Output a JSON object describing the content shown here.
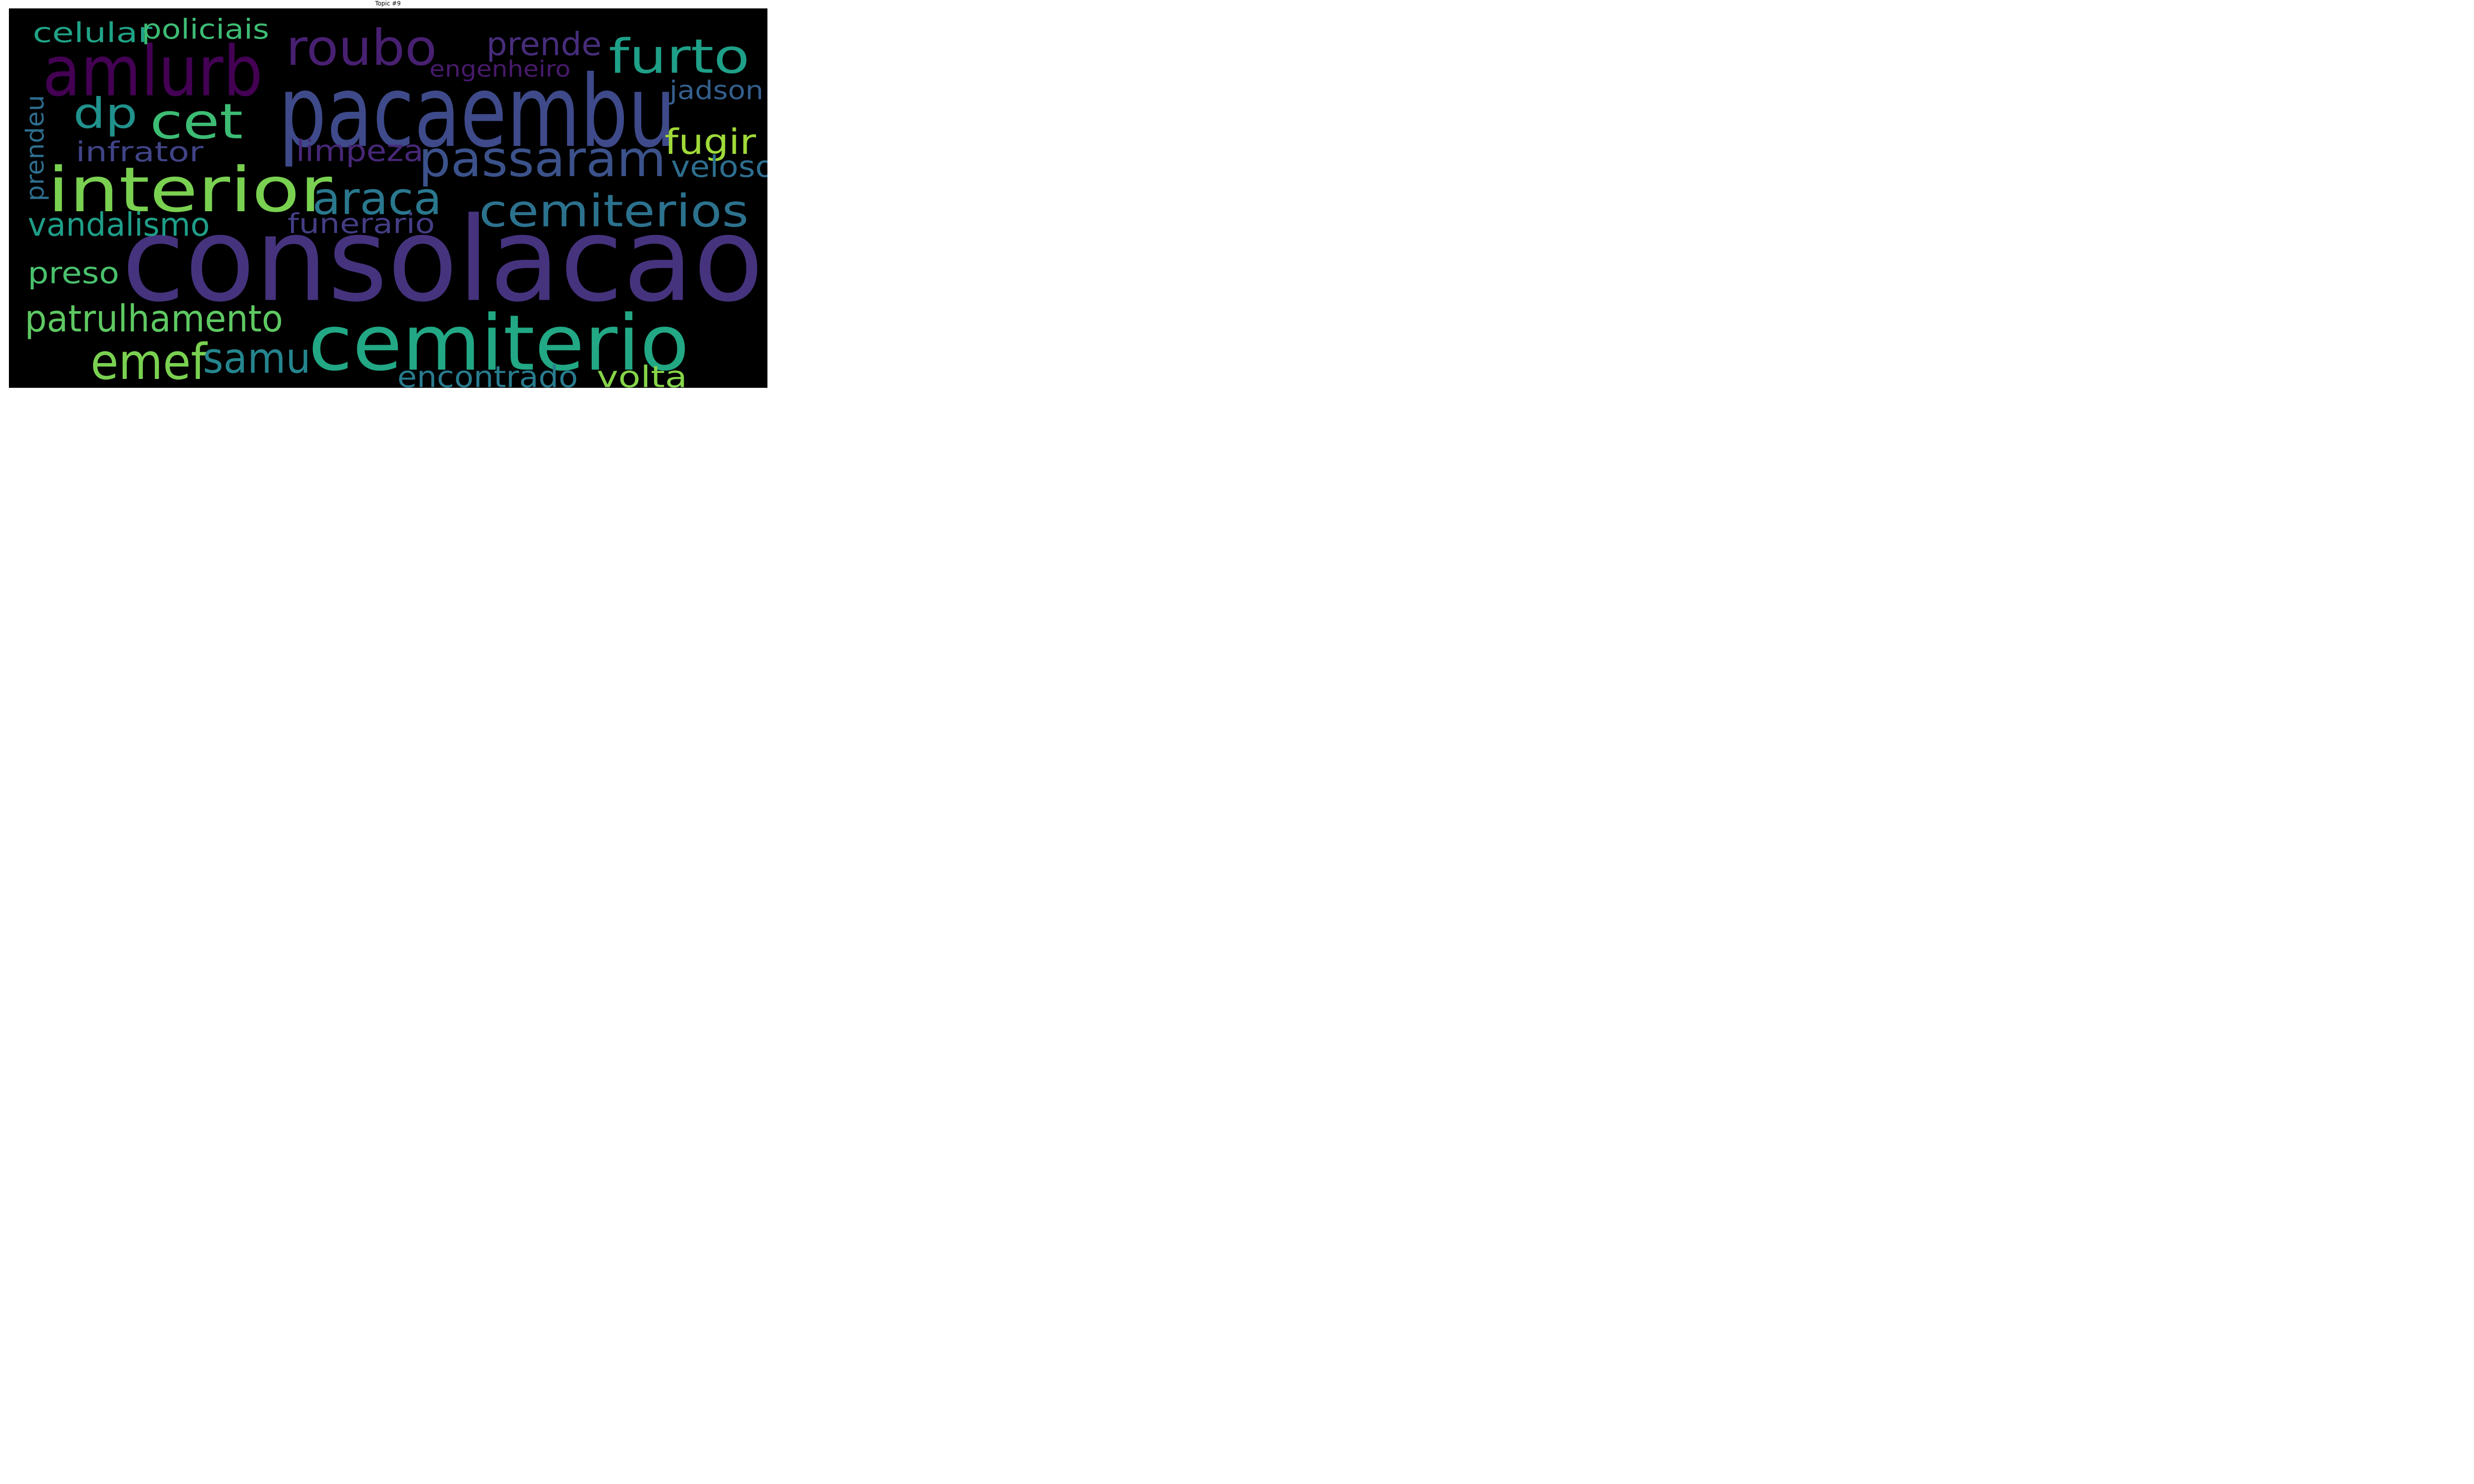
{
  "title": "Topic #9",
  "words": [
    {
      "text": "consolacao",
      "color": "#46337e"
    },
    {
      "text": "pacaembu",
      "color": "#3e4a89"
    },
    {
      "text": "cemiterio",
      "color": "#22a884"
    },
    {
      "text": "interior",
      "color": "#7ad151"
    },
    {
      "text": "amlurb",
      "color": "#440154"
    },
    {
      "text": "roubo",
      "color": "#482071"
    },
    {
      "text": "furto",
      "color": "#1fa088"
    },
    {
      "text": "passaram",
      "color": "#3b528b"
    },
    {
      "text": "cemiterios",
      "color": "#2c728e"
    },
    {
      "text": "cet",
      "color": "#3dbc74"
    },
    {
      "text": "dp",
      "color": "#21918c"
    },
    {
      "text": "araca",
      "color": "#2a788e"
    },
    {
      "text": "emef",
      "color": "#7ad151"
    },
    {
      "text": "samu",
      "color": "#25858e"
    },
    {
      "text": "prende",
      "color": "#472d7b"
    },
    {
      "text": "patrulhamento",
      "color": "#5ec962"
    },
    {
      "text": "fugir",
      "color": "#a0da39"
    },
    {
      "text": "vandalismo",
      "color": "#1f9e89"
    },
    {
      "text": "encontrado",
      "color": "#287c8e"
    },
    {
      "text": "volta",
      "color": "#86d549"
    },
    {
      "text": "preso",
      "color": "#4ac16d"
    },
    {
      "text": "celular",
      "color": "#20a386"
    },
    {
      "text": "policiais",
      "color": "#3dbc74"
    },
    {
      "text": "limpeza",
      "color": "#482878"
    },
    {
      "text": "infrator",
      "color": "#414487"
    },
    {
      "text": "funerario",
      "color": "#433e85"
    },
    {
      "text": "engenheiro",
      "color": "#481a6c"
    },
    {
      "text": "jadson",
      "color": "#355f8d"
    },
    {
      "text": "veloso",
      "color": "#2e6e8e"
    },
    {
      "text": "prendeu",
      "color": "#2e6e8e"
    }
  ]
}
